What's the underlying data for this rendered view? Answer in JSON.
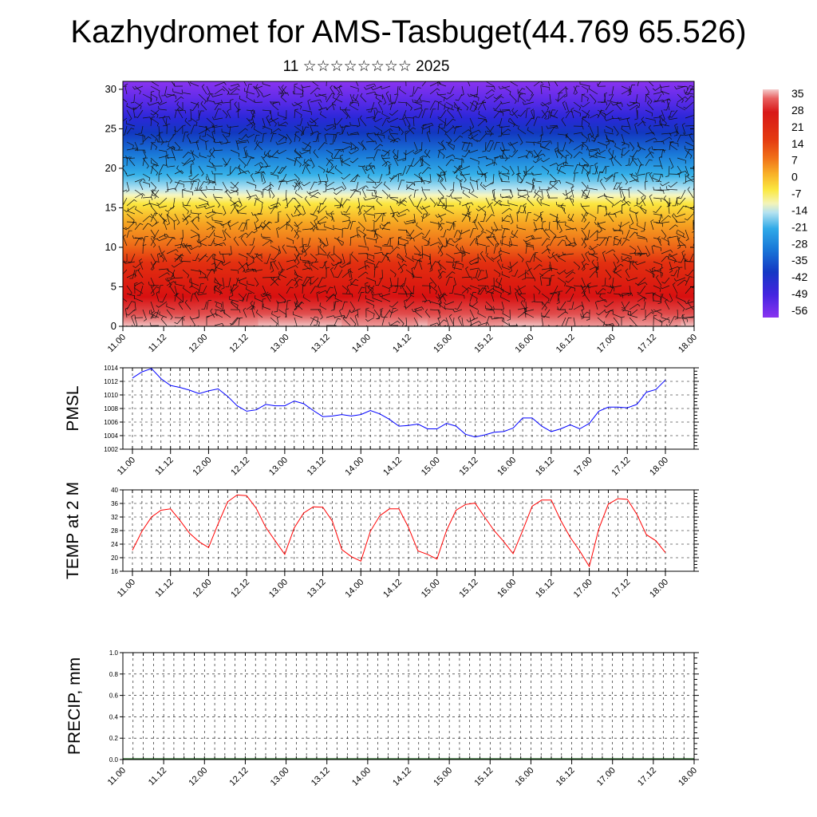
{
  "title": "Kazhydromet for AMS-Tasbuget(44.769 65.526)",
  "subtitle": "11 ☆☆☆☆☆☆☆☆ 2025",
  "chart_data": [
    {
      "type": "heatmap",
      "panel": "cross-section",
      "y_ticks": [
        "0",
        "5",
        "10",
        "15",
        "20",
        "25",
        "30"
      ],
      "ylim": [
        0,
        31
      ],
      "x_ticks": [
        "11.00",
        "11.12",
        "12.00",
        "12.12",
        "13.00",
        "13.12",
        "14.00",
        "14.12",
        "15.00",
        "15.12",
        "16.00",
        "16.12",
        "17.00",
        "17.12",
        "18.00"
      ],
      "colorbar": {
        "labels": [
          "35",
          "28",
          "21",
          "14",
          "7",
          "0",
          "-7",
          "-14",
          "-21",
          "-28",
          "-35",
          "-42",
          "-49",
          "-56"
        ],
        "colors": [
          "#f4c8c8",
          "#e84545",
          "#d41010",
          "#e83a10",
          "#f07418",
          "#f7a020",
          "#fbe840",
          "#f5f5b0",
          "#b0e0f0",
          "#30a8e8",
          "#1070d8",
          "#1840c8",
          "#4020e0",
          "#8030f0"
        ]
      }
    },
    {
      "type": "line",
      "panel": "pmsl",
      "ylabel": "PMSL",
      "y_ticks": [
        "1002",
        "1004",
        "1006",
        "1008",
        "1010",
        "1012",
        "1014"
      ],
      "ylim": [
        1002,
        1014
      ],
      "x_ticks": [
        "11.00",
        "11.12",
        "12.00",
        "12.12",
        "13.00",
        "13.12",
        "14.00",
        "14.12",
        "15.00",
        "15.12",
        "16.00",
        "16.12",
        "17.00",
        "17.12",
        "18.00"
      ],
      "step_hours": 3,
      "color": "#0000ff",
      "values": [
        1012.5,
        1013.4,
        1013.9,
        1012.4,
        1011.4,
        1011.1,
        1010.7,
        1010.2,
        1010.6,
        1010.9,
        1009.8,
        1008.4,
        1007.6,
        1007.8,
        1008.6,
        1008.4,
        1008.4,
        1009.1,
        1008.7,
        1007.7,
        1006.8,
        1006.9,
        1007.1,
        1006.9,
        1007.1,
        1007.7,
        1007.2,
        1006.4,
        1005.4,
        1005.5,
        1005.7,
        1005.0,
        1005.0,
        1005.8,
        1005.4,
        1004.2,
        1003.8,
        1004.1,
        1004.5,
        1004.6,
        1005.1,
        1006.6,
        1006.6,
        1005.4,
        1004.6,
        1005.0,
        1005.6,
        1005.0,
        1005.8,
        1007.6,
        1008.2,
        1008.2,
        1008.1,
        1008.6,
        1010.4,
        1010.8,
        1012.2
      ]
    },
    {
      "type": "line",
      "panel": "temp",
      "ylabel": "TEMP at 2 M",
      "y_ticks": [
        "16",
        "20",
        "24",
        "28",
        "32",
        "36",
        "40"
      ],
      "ylim": [
        16,
        40
      ],
      "x_ticks": [
        "11.00",
        "11.12",
        "12.00",
        "12.12",
        "13.00",
        "13.12",
        "14.00",
        "14.12",
        "15.00",
        "15.12",
        "16.00",
        "16.12",
        "17.00",
        "17.12",
        "18.00"
      ],
      "step_hours": 3,
      "color": "#ff0000",
      "values": [
        22.2,
        27.8,
        32.0,
        34.0,
        34.4,
        31.0,
        27.2,
        24.7,
        23.0,
        30.0,
        36.5,
        38.5,
        38.3,
        34.6,
        29.0,
        25.0,
        21.0,
        28.8,
        33.2,
        35.0,
        34.9,
        30.8,
        22.4,
        20.3,
        19.0,
        27.8,
        32.4,
        34.4,
        34.4,
        29.0,
        22.0,
        21.0,
        19.6,
        28.0,
        34.0,
        35.7,
        36.1,
        32.0,
        28.0,
        24.8,
        21.2,
        28.0,
        35.2,
        37.0,
        37.0,
        31.0,
        26.0,
        22.0,
        17.4,
        28.5,
        35.8,
        37.4,
        37.2,
        32.8,
        26.8,
        25.0,
        21.5
      ]
    },
    {
      "type": "bar",
      "panel": "precip",
      "ylabel": "PRECIP, mm",
      "y_ticks": [
        "0.0",
        "0.2",
        "0.4",
        "0.6",
        "0.8",
        "1.0"
      ],
      "ylim": [
        0,
        1
      ],
      "x_ticks": [
        "11.00",
        "11.12",
        "12.00",
        "12.12",
        "13.00",
        "13.12",
        "14.00",
        "14.12",
        "15.00",
        "15.12",
        "16.00",
        "16.12",
        "17.00",
        "17.12",
        "18.00"
      ],
      "step_hours": 3,
      "values": [
        0
      ]
    }
  ]
}
